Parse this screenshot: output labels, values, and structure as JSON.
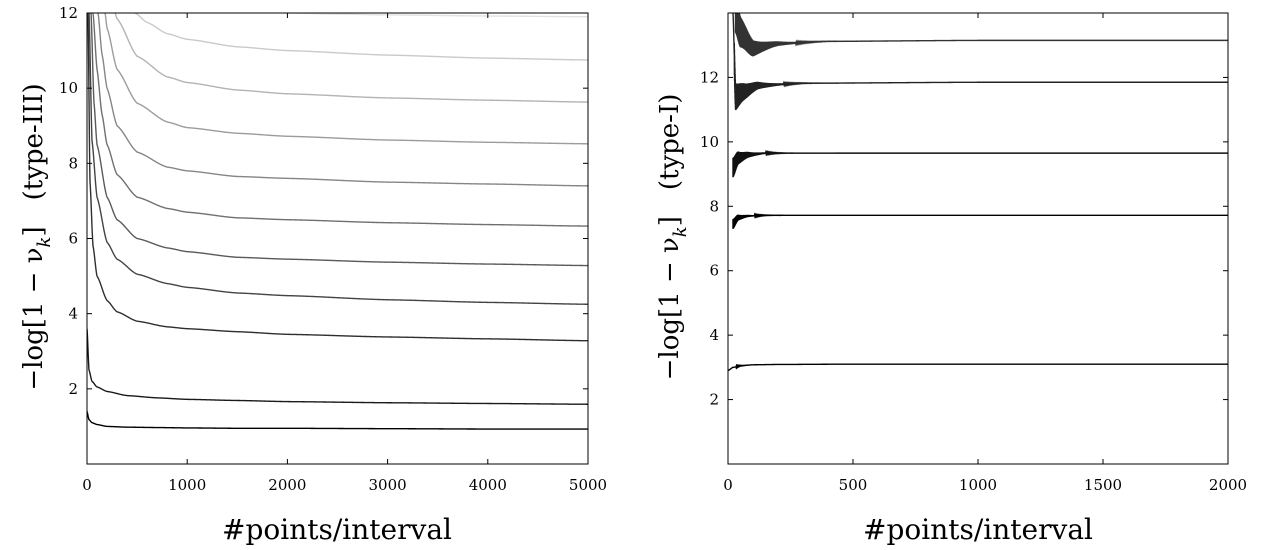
{
  "chart_data": [
    {
      "type": "line",
      "title": "",
      "xlabel": "#points/interval",
      "ylabel": {
        "main": "−log[1 − ν",
        "sub": "k",
        "close": "]",
        "tag": "(type-III)"
      },
      "xlim": [
        0,
        5000
      ],
      "ylim": [
        0,
        12
      ],
      "x_ticks": [
        "0",
        "1000",
        "2000",
        "3000",
        "4000",
        "5000"
      ],
      "y_ticks": [
        "2",
        "4",
        "6",
        "8",
        "10",
        "12"
      ],
      "grid": false,
      "legend": "none",
      "series_colors": [
        "#000000",
        "#1a1a1a",
        "#2f2f2f",
        "#444444",
        "#5a5a5a",
        "#707070",
        "#868686",
        "#9c9c9c",
        "#b3b3b3",
        "#cacaca",
        "#e2e2e2"
      ],
      "series": [
        {
          "x": [
            0,
            20,
            50,
            100,
            200,
            400,
            700,
            1000,
            1500,
            2000,
            3000,
            4000,
            5000
          ],
          "y": [
            1.4,
            1.18,
            1.1,
            1.05,
            1.0,
            0.98,
            0.97,
            0.96,
            0.95,
            0.95,
            0.94,
            0.93,
            0.93
          ]
        },
        {
          "x": [
            0,
            20,
            50,
            100,
            200,
            400,
            700,
            1000,
            1500,
            2000,
            3000,
            4000,
            5000
          ],
          "y": [
            3.6,
            2.5,
            2.2,
            2.05,
            1.93,
            1.82,
            1.76,
            1.72,
            1.69,
            1.66,
            1.63,
            1.61,
            1.59
          ]
        },
        {
          "x": [
            10,
            30,
            60,
            100,
            200,
            300,
            500,
            800,
            1000,
            1500,
            2000,
            3000,
            4000,
            5000
          ],
          "y": [
            12,
            7.5,
            5.8,
            5.0,
            4.35,
            4.05,
            3.8,
            3.65,
            3.6,
            3.52,
            3.45,
            3.38,
            3.33,
            3.28
          ]
        },
        {
          "x": [
            20,
            50,
            100,
            200,
            300,
            500,
            800,
            1000,
            1500,
            2000,
            3000,
            4000,
            5000
          ],
          "y": [
            12,
            8.6,
            7.1,
            5.9,
            5.45,
            5.05,
            4.8,
            4.7,
            4.55,
            4.48,
            4.37,
            4.3,
            4.25
          ]
        },
        {
          "x": [
            40,
            70,
            100,
            200,
            300,
            500,
            800,
            1000,
            1500,
            2000,
            3000,
            4000,
            5000
          ],
          "y": [
            12,
            9.6,
            8.5,
            7.1,
            6.5,
            6.0,
            5.75,
            5.65,
            5.5,
            5.45,
            5.37,
            5.32,
            5.28
          ]
        },
        {
          "x": [
            60,
            100,
            150,
            200,
            300,
            500,
            800,
            1000,
            1500,
            2000,
            3000,
            4000,
            5000
          ],
          "y": [
            12,
            10.5,
            9.3,
            8.5,
            7.7,
            7.1,
            6.8,
            6.7,
            6.55,
            6.5,
            6.42,
            6.37,
            6.33
          ]
        },
        {
          "x": [
            110,
            150,
            200,
            300,
            500,
            800,
            1000,
            1500,
            2000,
            3000,
            4000,
            5000
          ],
          "y": [
            12,
            10.9,
            10.0,
            9.0,
            8.3,
            7.9,
            7.8,
            7.65,
            7.6,
            7.5,
            7.45,
            7.4
          ]
        },
        {
          "x": [
            180,
            200,
            300,
            500,
            800,
            1000,
            1500,
            2000,
            3000,
            4000,
            5000
          ],
          "y": [
            12,
            11.6,
            10.5,
            9.6,
            9.1,
            8.95,
            8.8,
            8.72,
            8.62,
            8.56,
            8.52
          ]
        },
        {
          "x": [
            280,
            300,
            500,
            800,
            1000,
            1500,
            2000,
            3000,
            4000,
            5000
          ],
          "y": [
            12,
            11.85,
            10.85,
            10.3,
            10.15,
            9.95,
            9.85,
            9.74,
            9.68,
            9.63
          ]
        },
        {
          "x": [
            480,
            600,
            800,
            1000,
            1500,
            2000,
            3000,
            4000,
            5000
          ],
          "y": [
            12,
            11.75,
            11.45,
            11.3,
            11.1,
            11.0,
            10.88,
            10.8,
            10.75
          ]
        },
        {
          "x": [
            2000,
            2500,
            3000,
            4000,
            5000
          ],
          "y": [
            12,
            11.97,
            11.95,
            11.92,
            11.9
          ]
        }
      ]
    },
    {
      "type": "line",
      "title": "",
      "xlabel": "#points/interval",
      "ylabel": {
        "main": "−log[1 − ν",
        "sub": "k",
        "close": "]",
        "tag": "(type-I)"
      },
      "xlim": [
        0,
        2000
      ],
      "ylim": [
        0,
        14
      ],
      "x_ticks": [
        "0",
        "500",
        "1000",
        "1500",
        "2000"
      ],
      "y_ticks": [
        "2",
        "4",
        "6",
        "8",
        "10",
        "12"
      ],
      "grid": false,
      "legend": "none",
      "series_colors": [
        "#000000",
        "#000000",
        "#111111",
        "#222222",
        "#333333"
      ],
      "series": [
        {
          "x": [
            0,
            20,
            50,
            100,
            200,
            500,
            1000,
            1500,
            2000
          ],
          "y": [
            2.9,
            3.0,
            3.05,
            3.08,
            3.09,
            3.1,
            3.1,
            3.1,
            3.1
          ],
          "oscillation": {
            "start": 20,
            "decay": 20,
            "amp": 0.02
          }
        },
        {
          "x": [
            20,
            40,
            80,
            150,
            300,
            1000,
            2000
          ],
          "y": [
            7.45,
            7.65,
            7.7,
            7.72,
            7.72,
            7.72,
            7.72
          ],
          "oscillation": {
            "start": 20,
            "decay": 40,
            "amp": 0.15
          }
        },
        {
          "x": [
            20,
            40,
            80,
            150,
            300,
            1000,
            2000
          ],
          "y": [
            9.2,
            9.5,
            9.6,
            9.65,
            9.65,
            9.65,
            9.65
          ],
          "oscillation": {
            "start": 20,
            "decay": 50,
            "amp": 0.3
          }
        },
        {
          "x": [
            20,
            30,
            60,
            120,
            300,
            1000,
            2000
          ],
          "y": [
            14,
            11.4,
            11.55,
            11.75,
            11.82,
            11.85,
            11.85
          ],
          "oscillation": {
            "start": 25,
            "decay": 70,
            "amp": 0.45
          }
        },
        {
          "x": [
            30,
            50,
            100,
            200,
            400,
            1000,
            2000
          ],
          "y": [
            14,
            13.4,
            12.9,
            13.05,
            13.12,
            13.15,
            13.15
          ],
          "oscillation": {
            "start": 30,
            "decay": 80,
            "amp": 0.6
          }
        }
      ]
    }
  ]
}
